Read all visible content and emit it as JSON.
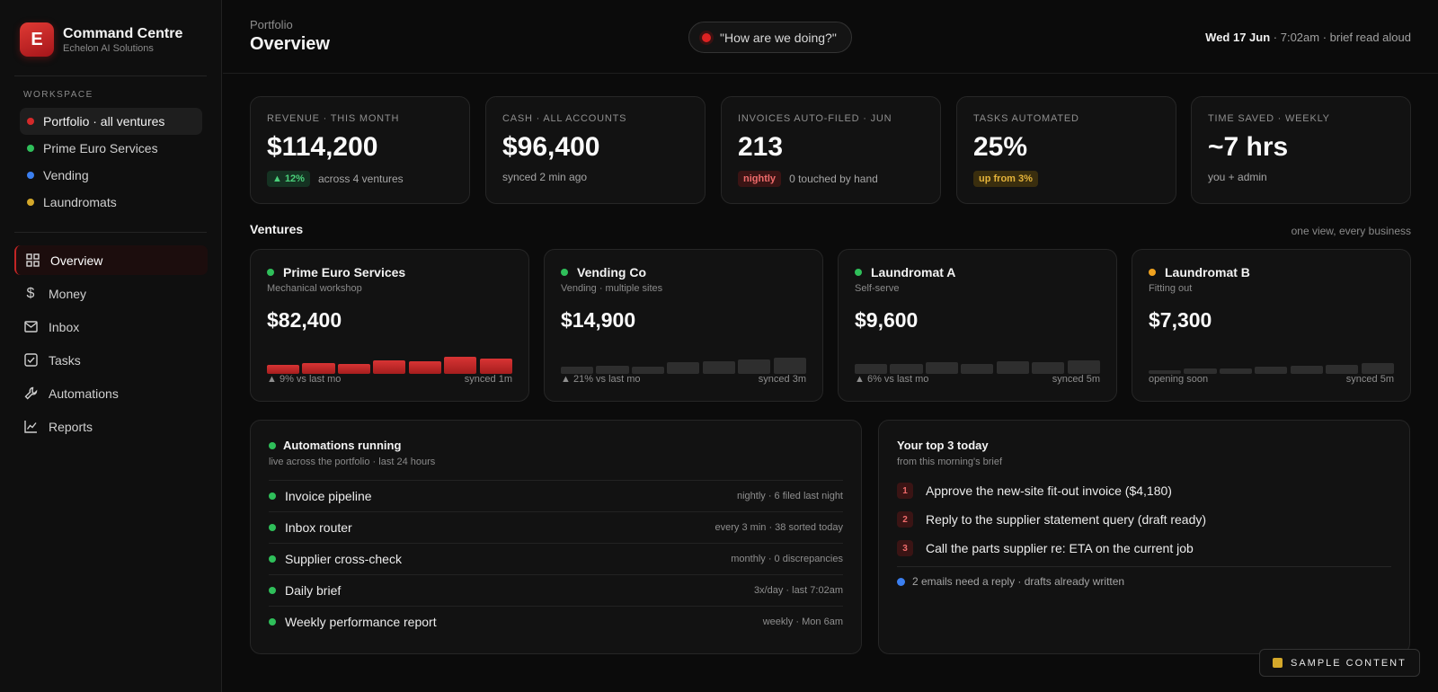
{
  "brand": {
    "logo_letter": "E",
    "title": "Command Centre",
    "subtitle": "Echelon AI Solutions"
  },
  "workspace": {
    "title": "WORKSPACE",
    "items": [
      {
        "label": "Portfolio · all ventures",
        "color": "#d42a2a"
      },
      {
        "label": "Prime Euro Services",
        "color": "#2fbf5a"
      },
      {
        "label": "Vending",
        "color": "#3b7ff0"
      },
      {
        "label": "Laundromats",
        "color": "#d4a82a"
      }
    ]
  },
  "nav": [
    {
      "label": "Overview",
      "icon": "grid-icon"
    },
    {
      "label": "Money",
      "icon": "dollar-icon"
    },
    {
      "label": "Inbox",
      "icon": "mail-icon"
    },
    {
      "label": "Tasks",
      "icon": "checkbox-icon"
    },
    {
      "label": "Automations",
      "icon": "wrench-icon"
    },
    {
      "label": "Reports",
      "icon": "line-chart-icon"
    }
  ],
  "header": {
    "breadcrumb": "Portfolio",
    "title": "Overview",
    "voice_prompt": "\"How are we doing?\"",
    "date": "Wed 17 Jun",
    "date_rest": " · 7:02am · brief read aloud"
  },
  "stats": [
    {
      "label": "REVENUE · THIS MONTH",
      "value": "$114,200",
      "badge": "▲ 12%",
      "note": "across 4 ventures"
    },
    {
      "label": "CASH · ALL ACCOUNTS",
      "value": "$96,400",
      "note": "synced 2 min ago"
    },
    {
      "label": "INVOICES AUTO-FILED · JUN",
      "value": "213",
      "badge": "nightly",
      "note": "0 touched by hand"
    },
    {
      "label": "TASKS AUTOMATED",
      "value": "25%",
      "badge": "up from 3%"
    },
    {
      "label": "TIME SAVED · WEEKLY",
      "value": "~7 hrs",
      "note": "you + admin"
    }
  ],
  "ventures_section": {
    "title": "Ventures",
    "note": "one view, every business"
  },
  "ventures": [
    {
      "name": "Prime Euro Services",
      "type": "Mechanical workshop",
      "value": "$82,400",
      "status_color": "#2fbf5a",
      "trend": "9% vs last mo",
      "synced": "synced 1m",
      "bars": [
        0.45,
        0.55,
        0.5,
        0.7,
        0.62,
        0.85,
        0.78
      ],
      "bar_color": "#c42727"
    },
    {
      "name": "Vending Co",
      "type": "Vending · multiple sites",
      "value": "$14,900",
      "status_color": "#2fbf5a",
      "trend": "21% vs last mo",
      "synced": "synced 3m",
      "bars": [
        0.35,
        0.42,
        0.38,
        0.58,
        0.62,
        0.72,
        0.82
      ],
      "bar_color": "#2e2e2e"
    },
    {
      "name": "Laundromat A",
      "type": "Self-serve",
      "value": "$9,600",
      "status_color": "#2fbf5a",
      "trend": "6% vs last mo",
      "synced": "synced 5m",
      "bars": [
        0.52,
        0.5,
        0.58,
        0.5,
        0.65,
        0.58,
        0.66
      ],
      "bar_color": "#2e2e2e"
    },
    {
      "name": "Laundromat B",
      "type": "Fitting out",
      "value": "$7,300",
      "status_color": "#f0a21f",
      "trend": "opening soon",
      "synced": "synced 5m",
      "bars": [
        0.18,
        0.25,
        0.28,
        0.35,
        0.4,
        0.45,
        0.55
      ],
      "bar_color": "#2e2e2e"
    }
  ],
  "automations": {
    "title": "Automations running",
    "subtitle": "live across the portfolio · last 24 hours",
    "rows": [
      {
        "name": "Invoice pipeline",
        "detail": "nightly · 6 filed last night"
      },
      {
        "name": "Inbox router",
        "detail": "every 3 min · 38 sorted today"
      },
      {
        "name": "Supplier cross-check",
        "detail": "monthly · 0 discrepancies"
      },
      {
        "name": "Daily brief",
        "detail": "3x/day · last 7:02am"
      },
      {
        "name": "Weekly performance report",
        "detail": "weekly · Mon 6am"
      }
    ]
  },
  "top3": {
    "title": "Your top 3 today",
    "subtitle": "from this morning's brief",
    "tasks": [
      {
        "num": "1",
        "text": "Approve the new-site fit-out invoice ($4,180)"
      },
      {
        "num": "2",
        "text": "Reply to the supplier statement query (draft ready)"
      },
      {
        "num": "3",
        "text": "Call the parts supplier re: ETA on the current job"
      }
    ],
    "emails_note": "2 emails need a reply · drafts already written"
  },
  "sample_badge": "SAMPLE CONTENT",
  "colors": {
    "accent": "#c42727",
    "green": "#2fbf5a",
    "blue": "#3b7ff0",
    "amber": "#d4a82a"
  }
}
